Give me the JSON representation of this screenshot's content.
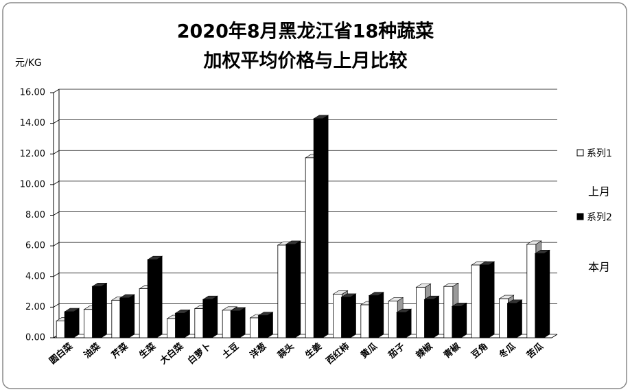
{
  "chart_data": {
    "type": "bar3d",
    "title": [
      "2020年8月黑龙江省18种蔬菜",
      "加权平均价格与上月比较"
    ],
    "y_unit": "元/KG",
    "categories": [
      "圆白菜",
      "油菜",
      "芹菜",
      "生菜",
      "大白菜",
      "白萝卜",
      "土豆",
      "洋葱",
      "蒜头",
      "生姜",
      "西红柿",
      "黄瓜",
      "茄子",
      "辣椒",
      "青椒",
      "豆角",
      "冬瓜",
      "苦瓜"
    ],
    "series": [
      {
        "name": "系列1",
        "color": "#ffffff",
        "values": [
          1.1,
          1.85,
          2.45,
          3.2,
          1.25,
          1.9,
          1.8,
          1.3,
          6.05,
          11.75,
          2.85,
          2.15,
          2.4,
          3.3,
          3.35,
          4.75,
          2.55,
          6.1
        ]
      },
      {
        "name": "系列2",
        "color": "#000000",
        "values": [
          1.7,
          3.35,
          2.6,
          5.1,
          1.6,
          2.5,
          1.75,
          1.45,
          6.1,
          14.3,
          2.65,
          2.75,
          1.65,
          2.5,
          2.05,
          4.75,
          2.25,
          5.5
        ]
      }
    ],
    "annotations": [
      "上月",
      "本月"
    ],
    "ylim": [
      0,
      16
    ],
    "yticks": [
      {
        "value": 0,
        "label": "0.00"
      },
      {
        "value": 2,
        "label": "2.00"
      },
      {
        "value": 4,
        "label": "4.00"
      },
      {
        "value": 6,
        "label": "6.00"
      },
      {
        "value": 8,
        "label": "8.00"
      },
      {
        "value": 10,
        "label": "10.00"
      },
      {
        "value": 12,
        "label": "12.00"
      },
      {
        "value": 14,
        "label": "14.00"
      },
      {
        "value": 16,
        "label": "16.00"
      }
    ],
    "grid": true
  }
}
